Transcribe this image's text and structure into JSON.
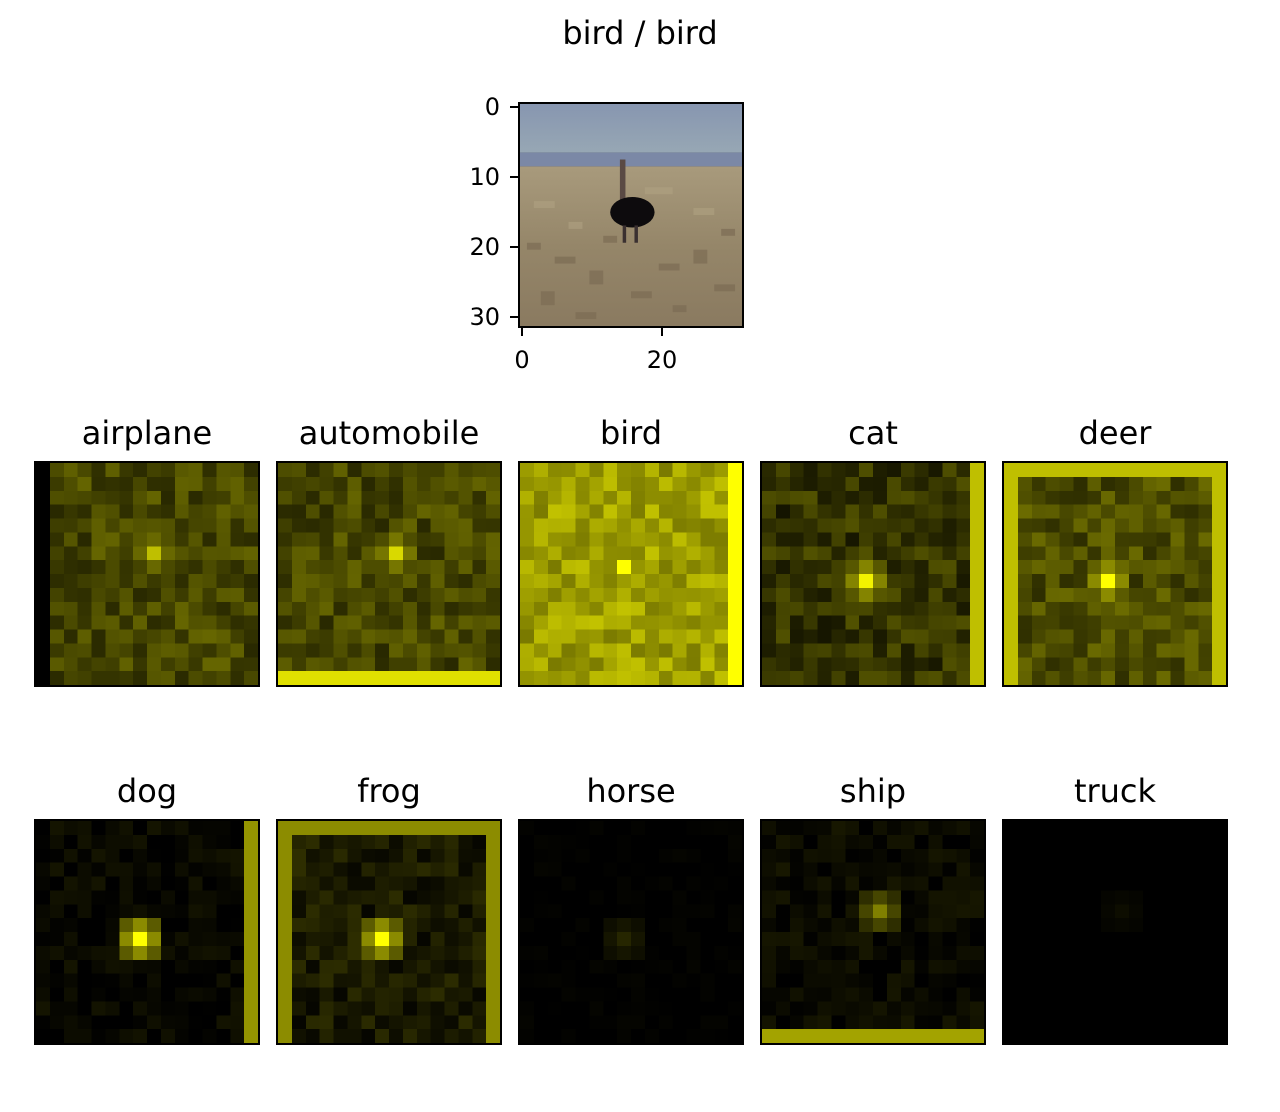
{
  "figure": {
    "title": "bird / bird",
    "main_image": {
      "y_ticks": [
        "0",
        "10",
        "20",
        "30"
      ],
      "x_ticks": [
        "0",
        "20"
      ]
    },
    "panels": [
      {
        "label": "airplane"
      },
      {
        "label": "automobile"
      },
      {
        "label": "bird"
      },
      {
        "label": "cat"
      },
      {
        "label": "deer"
      },
      {
        "label": "dog"
      },
      {
        "label": "frog"
      },
      {
        "label": "horse"
      },
      {
        "label": "ship"
      },
      {
        "label": "truck"
      }
    ],
    "heatmap_color": "#ffff00"
  }
}
